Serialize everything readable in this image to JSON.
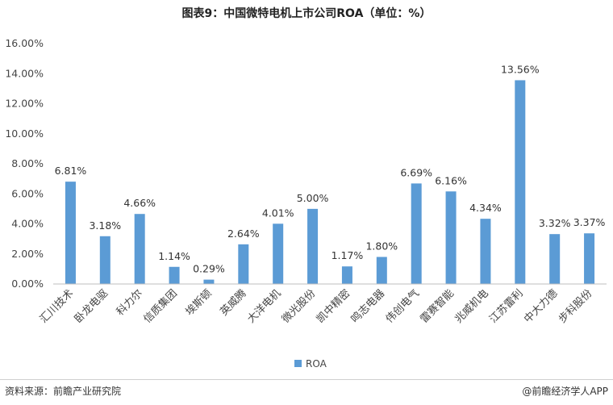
{
  "chart_data": {
    "type": "bar",
    "title": "图表9：中国微特电机上市公司ROA（单位：%）",
    "categories": [
      "汇川技术",
      "卧龙电驱",
      "科力尔",
      "信质集团",
      "埃斯顿",
      "英威腾",
      "大洋电机",
      "微光股份",
      "凯中精密",
      "鸣志电器",
      "伟创电气",
      "雷赛智能",
      "兆威机电",
      "江苏雷利",
      "中大力德",
      "步科股份"
    ],
    "series": [
      {
        "name": "ROA",
        "values": [
          6.81,
          3.18,
          4.66,
          1.14,
          0.29,
          2.64,
          4.01,
          5.0,
          1.17,
          1.8,
          6.69,
          6.16,
          4.34,
          13.56,
          3.32,
          3.37
        ],
        "labels": [
          "6.81%",
          "3.18%",
          "4.66%",
          "1.14%",
          "0.29%",
          "2.64%",
          "4.01%",
          "5.00%",
          "1.17%",
          "1.80%",
          "6.69%",
          "6.16%",
          "4.34%",
          "13.56%",
          "3.32%",
          "3.37%"
        ]
      }
    ],
    "ylim": [
      0,
      16
    ],
    "yticks": [
      0,
      2,
      4,
      6,
      8,
      10,
      12,
      14,
      16
    ],
    "ytick_labels": [
      "0.00%",
      "2.00%",
      "4.00%",
      "6.00%",
      "8.00%",
      "10.00%",
      "12.00%",
      "14.00%",
      "16.00%"
    ],
    "grid": false,
    "legend_position": "bottom",
    "bar_color": "#5b9bd5"
  },
  "footer": {
    "source": "资料来源：前瞻产业研究院",
    "brand": "@前瞻经济学人APP"
  }
}
